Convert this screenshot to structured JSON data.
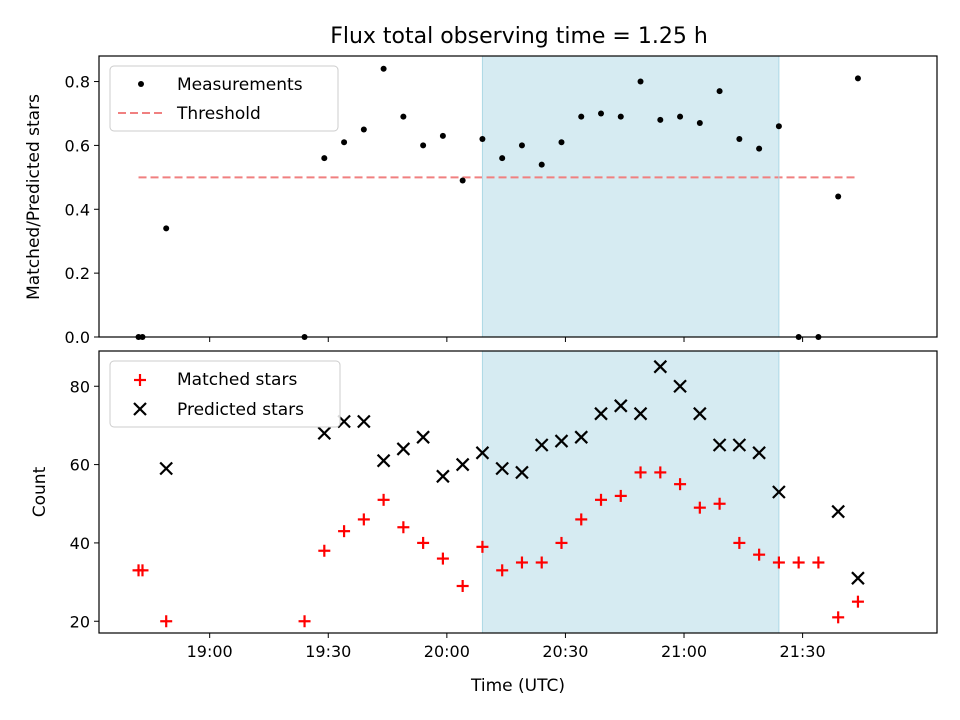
{
  "figure_title": "Flux total observing time = 1.25 h",
  "chart_data": [
    {
      "type": "scatter",
      "ylabel": "Matched/Predicted stars",
      "xlabel": "",
      "xlim": [
        "18:32",
        "22:04"
      ],
      "ylim": [
        0,
        0.88
      ],
      "yticks": [
        0.0,
        0.2,
        0.4,
        0.6,
        0.8
      ],
      "yticklabels": [
        "0.0",
        "0.2",
        "0.4",
        "0.6",
        "0.8"
      ],
      "shaded_region": {
        "x": [
          "20:09",
          "21:24"
        ],
        "color": "#add8e6"
      },
      "legend": "top-left",
      "series": [
        {
          "name": "Measurements",
          "color": "#000000",
          "marker": "dot",
          "x": [
            "18:42",
            "18:43",
            "18:49",
            "19:24",
            "19:29",
            "19:34",
            "19:39",
            "19:44",
            "19:49",
            "19:54",
            "19:59",
            "20:04",
            "20:09",
            "20:14",
            "20:19",
            "20:24",
            "20:29",
            "20:34",
            "20:39",
            "20:44",
            "20:49",
            "20:54",
            "20:59",
            "21:04",
            "21:09",
            "21:14",
            "21:19",
            "21:24",
            "21:29",
            "21:34",
            "21:39",
            "21:44"
          ],
          "values": [
            0,
            0,
            0.34,
            0,
            0.56,
            0.61,
            0.65,
            0.84,
            0.69,
            0.6,
            0.63,
            0.49,
            0.62,
            0.56,
            0.6,
            0.54,
            0.61,
            0.69,
            0.7,
            0.69,
            0.8,
            0.68,
            0.69,
            0.67,
            0.77,
            0.62,
            0.59,
            0.66,
            0,
            0,
            0.44,
            0.81
          ]
        },
        {
          "name": "Threshold",
          "color": "#f08080",
          "style": "dashed",
          "x": [
            "18:42",
            "21:44"
          ],
          "values": [
            0.5,
            0.5
          ]
        }
      ]
    },
    {
      "type": "scatter",
      "ylabel": "Count",
      "xlabel": "Time (UTC)",
      "xlim": [
        "18:32",
        "22:04"
      ],
      "ylim": [
        17,
        89
      ],
      "yticks": [
        20,
        40,
        60,
        80
      ],
      "yticklabels": [
        "20",
        "40",
        "60",
        "80"
      ],
      "xticks": [
        "19:00",
        "19:30",
        "20:00",
        "20:30",
        "21:00",
        "21:30"
      ],
      "xticklabels": [
        "19:00",
        "19:30",
        "20:00",
        "20:30",
        "21:00",
        "21:30"
      ],
      "shaded_region": {
        "x": [
          "20:09",
          "21:24"
        ],
        "color": "#add8e6"
      },
      "legend": "top-left",
      "series": [
        {
          "name": "Matched stars",
          "color": "#ff0000",
          "marker": "plus",
          "x": [
            "18:42",
            "18:43",
            "18:49",
            "19:24",
            "19:29",
            "19:34",
            "19:39",
            "19:44",
            "19:49",
            "19:54",
            "19:59",
            "20:04",
            "20:09",
            "20:14",
            "20:19",
            "20:24",
            "20:29",
            "20:34",
            "20:39",
            "20:44",
            "20:49",
            "20:54",
            "20:59",
            "21:04",
            "21:09",
            "21:14",
            "21:19",
            "21:24",
            "21:29",
            "21:34",
            "21:39",
            "21:44"
          ],
          "values": [
            33,
            33,
            20,
            20,
            38,
            43,
            46,
            51,
            44,
            40,
            36,
            29,
            39,
            33,
            35,
            35,
            40,
            46,
            51,
            52,
            58,
            58,
            55,
            49,
            50,
            40,
            37,
            35,
            35,
            35,
            21,
            25
          ]
        },
        {
          "name": "Predicted stars",
          "color": "#000000",
          "marker": "x",
          "x": [
            "18:49",
            "19:29",
            "19:34",
            "19:39",
            "19:44",
            "19:49",
            "19:54",
            "19:59",
            "20:04",
            "20:09",
            "20:14",
            "20:19",
            "20:24",
            "20:29",
            "20:34",
            "20:39",
            "20:44",
            "20:49",
            "20:54",
            "20:59",
            "21:04",
            "21:09",
            "21:14",
            "21:19",
            "21:24",
            "21:39",
            "21:44"
          ],
          "values": [
            59,
            68,
            71,
            71,
            61,
            64,
            67,
            57,
            60,
            63,
            59,
            58,
            65,
            66,
            67,
            73,
            75,
            73,
            85,
            80,
            73,
            65,
            65,
            63,
            53,
            48,
            31
          ]
        }
      ]
    }
  ]
}
